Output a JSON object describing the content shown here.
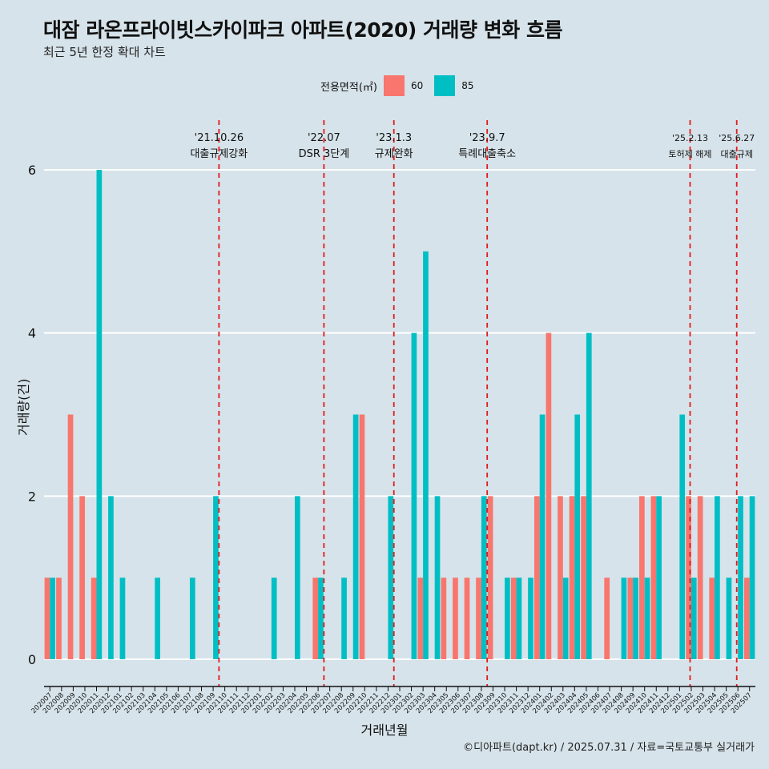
{
  "title": "대잠 라온프라이빗스카이파크 아파트(2020) 거래량 변화 흐름",
  "subtitle": "최근 5년 한정 확대 차트",
  "caption": "©디아파트(dapt.kr) / 2025.07.31 / 자료=국토교통부 실거래가",
  "colors": {
    "s60": "#f8766d",
    "s85": "#00bfc4",
    "event": "#e41a1c",
    "bg": "#d6e3ea"
  },
  "chart_data": {
    "type": "bar",
    "title": "대잠 라온프라이빗스카이파크 아파트(2020) 거래량 변화 흐름",
    "xlabel": "거래년월",
    "ylabel": "거래량(건)",
    "ylim": [
      -0.3,
      6.6
    ],
    "yticks": [
      0,
      2,
      4,
      6
    ],
    "legend_title": "전용면적(㎡)",
    "legend_position": "top",
    "categories": [
      "202007",
      "202008",
      "202009",
      "202010",
      "202011",
      "202012",
      "202101",
      "202102",
      "202103",
      "202104",
      "202105",
      "202106",
      "202107",
      "202108",
      "202109",
      "202110",
      "202111",
      "202112",
      "202201",
      "202202",
      "202203",
      "202204",
      "202205",
      "202206",
      "202207",
      "202208",
      "202209",
      "202210",
      "202211",
      "202212",
      "202301",
      "202302",
      "202303",
      "202304",
      "202305",
      "202306",
      "202307",
      "202308",
      "202309",
      "202310",
      "202311",
      "202312",
      "202401",
      "202402",
      "202403",
      "202404",
      "202405",
      "202406",
      "202407",
      "202408",
      "202409",
      "202410",
      "202411",
      "202412",
      "202501",
      "202502",
      "202503",
      "202504",
      "202505",
      "202506",
      "202507"
    ],
    "series": [
      {
        "name": "60",
        "values": [
          1,
          1,
          3,
          2,
          1,
          0,
          0,
          0,
          0,
          0,
          0,
          0,
          0,
          0,
          0,
          0,
          0,
          0,
          0,
          0,
          0,
          0,
          0,
          1,
          0,
          0,
          0,
          3,
          0,
          0,
          0,
          0,
          1,
          0,
          1,
          1,
          1,
          1,
          2,
          0,
          1,
          0,
          2,
          4,
          2,
          2,
          2,
          0,
          1,
          0,
          1,
          2,
          2,
          0,
          0,
          2,
          2,
          1,
          0,
          0,
          1
        ]
      },
      {
        "name": "85",
        "values": [
          1,
          0,
          0,
          0,
          6,
          2,
          1,
          0,
          0,
          1,
          0,
          0,
          1,
          0,
          2,
          0,
          0,
          0,
          0,
          1,
          0,
          2,
          0,
          1,
          0,
          1,
          3,
          0,
          0,
          2,
          0,
          4,
          5,
          2,
          0,
          0,
          0,
          2,
          0,
          1,
          1,
          1,
          3,
          0,
          1,
          3,
          4,
          0,
          0,
          1,
          1,
          1,
          2,
          0,
          3,
          1,
          0,
          2,
          1,
          2,
          2
        ]
      }
    ],
    "events": [
      {
        "x": 15.0,
        "date": "'21.10.26",
        "label": "대출규제강화"
      },
      {
        "x": 24.0,
        "date": "'22.07",
        "label": "DSR 3단계"
      },
      {
        "x": 30.0,
        "date": "'23.1.3",
        "label": "규제완화"
      },
      {
        "x": 38.0,
        "date": "'23.9.7",
        "label": "특례대출축소"
      },
      {
        "x": 55.4,
        "date": "'25.2.13",
        "label": "토허제 해제"
      },
      {
        "x": 59.4,
        "date": "'25.6.27",
        "label": "대출규제"
      }
    ]
  }
}
